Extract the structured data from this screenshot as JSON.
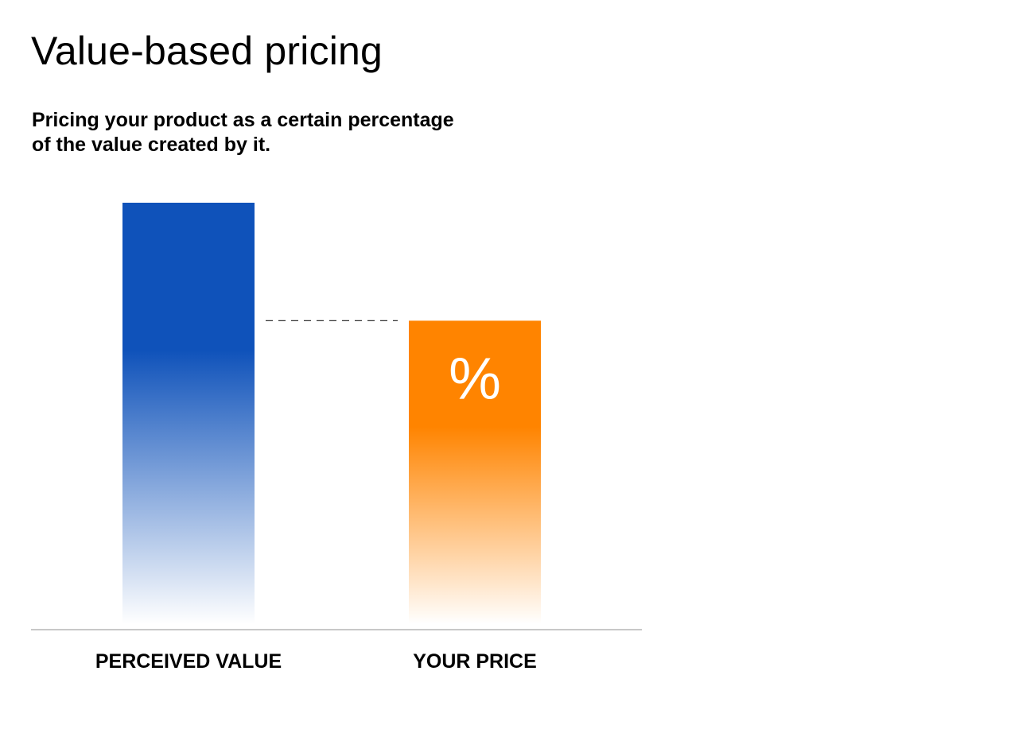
{
  "chart_data": {
    "type": "bar",
    "title": "Value-based pricing",
    "subtitle": "Pricing your product as a certain percentage of the value created by it.",
    "categories": [
      "PERCEIVED VALUE",
      "YOUR PRICE"
    ],
    "values": [
      100,
      72
    ],
    "colors": [
      "#0F52BA",
      "#FF8400"
    ],
    "bar_fill": "vertical gradient fading to white at baseline",
    "annotations": [
      {
        "category": "YOUR PRICE",
        "text": "%"
      }
    ],
    "connector": "dashed line between bars",
    "axes": "none",
    "grid": false,
    "legend": "none"
  }
}
